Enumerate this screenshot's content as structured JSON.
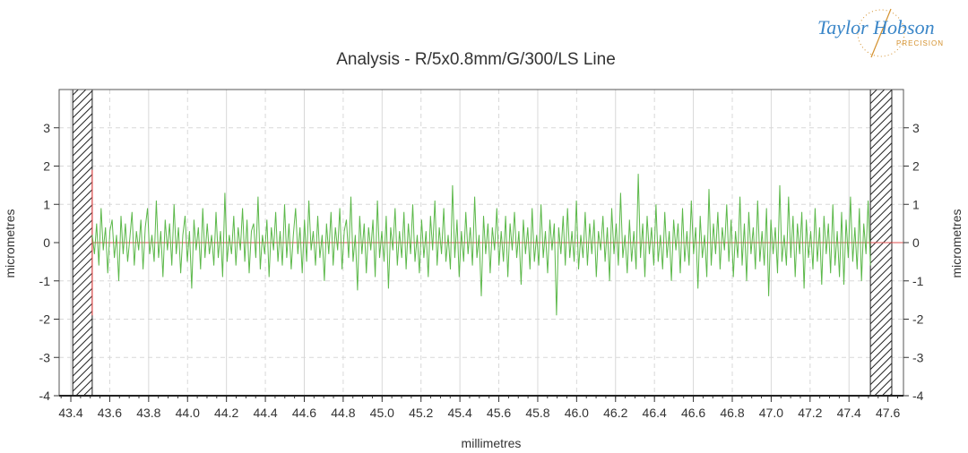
{
  "logo": {
    "name": "Taylor Hobson",
    "sub": "PRECISION"
  },
  "chart_data": {
    "type": "line",
    "title": "Analysis - R/5x0.8mm/G/300/LS Line",
    "xlabel": "millimetres",
    "ylabel": "micrometres",
    "ylabel_right": "micrometres",
    "xlim": [
      43.34,
      47.68
    ],
    "ylim": [
      -4,
      4
    ],
    "x_ticks": [
      "43.4",
      "43.6",
      "43.8",
      "44.0",
      "44.2",
      "44.4",
      "44.6",
      "44.8",
      "45.0",
      "45.2",
      "45.4",
      "45.6",
      "45.8",
      "46.0",
      "46.2",
      "46.4",
      "46.6",
      "46.8",
      "47.0",
      "47.2",
      "47.4",
      "47.6"
    ],
    "y_ticks": [
      "3",
      "2",
      "1",
      "0",
      "-1",
      "-2",
      "-3",
      "-4"
    ],
    "grid": true,
    "excluded_regions": [
      [
        43.41,
        43.51
      ],
      [
        47.51,
        47.62
      ]
    ],
    "evaluation_start_marker": {
      "x": 43.51,
      "y_range": [
        -1.9,
        1.9
      ]
    },
    "reference_line": {
      "y": 0,
      "color": "#e05050"
    },
    "profile_color": "#5cb84a",
    "series": [
      {
        "x_start": 43.51,
        "x_end": 47.51,
        "values": [
          0.2,
          -0.3,
          0.5,
          -0.6,
          0.9,
          -0.2,
          0.4,
          -0.8,
          0.3,
          0.6,
          -0.4,
          0.2,
          -1.0,
          0.7,
          -0.3,
          0.5,
          -0.5,
          0.1,
          0.8,
          -0.6,
          0.3,
          -0.2,
          0.6,
          -0.7,
          0.4,
          0.9,
          -0.3,
          0.2,
          -0.5,
          1.1,
          -0.4,
          0.3,
          -0.9,
          0.6,
          -0.2,
          0.5,
          -0.6,
          1.0,
          -0.3,
          0.4,
          -0.8,
          0.2,
          0.7,
          -0.5,
          0.3,
          -1.2,
          0.6,
          -0.2,
          0.4,
          -0.7,
          0.9,
          -0.4,
          0.5,
          -0.3,
          0.2,
          -0.6,
          0.8,
          -0.4,
          0.3,
          -0.9,
          1.3,
          -0.5,
          0.2,
          -0.3,
          0.7,
          -0.6,
          0.4,
          -0.2,
          0.9,
          -0.5,
          0.6,
          -0.8,
          0.3,
          0.5,
          -0.4,
          1.2,
          -0.7,
          0.2,
          -0.3,
          0.6,
          -0.9,
          0.4,
          -0.2,
          0.8,
          -0.5,
          0.3,
          -0.6,
          1.0,
          -0.4,
          0.5,
          -0.7,
          0.2,
          0.9,
          -0.3,
          0.4,
          -0.8,
          0.6,
          -0.5,
          1.1,
          -0.2,
          0.3,
          -0.6,
          0.7,
          -0.4,
          0.2,
          -1.0,
          0.5,
          -0.3,
          0.8,
          -0.6,
          0.4,
          -0.2,
          0.9,
          -0.7,
          0.3,
          0.6,
          -0.4,
          1.2,
          -0.5,
          0.2,
          -1.25,
          0.7,
          -0.3,
          0.5,
          -0.8,
          0.4,
          -0.2,
          0.6,
          -0.9,
          1.1,
          -0.4,
          0.3,
          -0.5,
          0.7,
          -1.2,
          0.4,
          -0.2,
          0.9,
          -0.6,
          0.3,
          -0.4,
          0.8,
          -0.7,
          0.5,
          -0.3,
          1.0,
          -0.5,
          0.2,
          -0.8,
          0.6,
          -0.4,
          0.3,
          -0.9,
          0.7,
          -0.2,
          1.1,
          -0.6,
          0.4,
          -0.3,
          0.9,
          -0.5,
          0.2,
          -0.7,
          1.5,
          -0.4,
          0.6,
          -0.9,
          0.3,
          -0.5,
          0.8,
          -0.3,
          0.4,
          -0.6,
          1.2,
          -0.4,
          0.2,
          -1.4,
          0.7,
          -0.3,
          0.5,
          -0.8,
          0.4,
          -0.2,
          0.9,
          -0.6,
          0.3,
          -0.5,
          0.7,
          -0.9,
          0.5,
          -0.2,
          0.8,
          -0.4,
          0.3,
          -1.1,
          0.6,
          -0.3,
          0.4,
          -0.7,
          0.9,
          -0.5,
          0.2,
          -0.6,
          1.0,
          -0.4,
          0.3,
          -0.8,
          0.6,
          -0.2,
          0.5,
          -1.9,
          0.4,
          -0.3,
          0.7,
          -0.6,
          0.9,
          -0.4,
          0.3,
          -0.5,
          1.1,
          -0.7,
          0.2,
          -0.4,
          0.8,
          -0.6,
          0.5,
          -0.3,
          0.6,
          -0.9,
          0.3,
          -0.2,
          0.7,
          -0.5,
          0.4,
          -1.0,
          0.9,
          -0.3,
          0.5,
          -0.6,
          1.3,
          -0.4,
          0.2,
          -0.8,
          0.6,
          -0.5,
          0.3,
          -0.7,
          1.8,
          -0.4,
          0.5,
          -0.9,
          0.7,
          -0.3,
          0.4,
          -0.6,
          1.0,
          -0.5,
          0.2,
          -0.7,
          0.8,
          -0.4,
          0.3,
          -1.0,
          0.6,
          -0.2,
          0.5,
          -0.8,
          0.9,
          -0.5,
          0.3,
          -0.6,
          1.1,
          -0.3,
          0.4,
          -1.2,
          0.7,
          -0.4,
          0.2,
          -0.9,
          1.4,
          -0.6,
          0.5,
          -0.3,
          0.8,
          -0.7,
          0.4,
          -0.2,
          1.0,
          -0.5,
          0.6,
          -0.9,
          0.3,
          -0.4,
          1.2,
          -0.6,
          0.5,
          -1.0,
          0.8,
          -0.3,
          0.4,
          -0.7,
          1.1,
          -0.5,
          0.3,
          -0.6,
          0.9,
          -1.4,
          0.6,
          -0.3,
          0.4,
          -0.8,
          1.5,
          -0.5,
          0.2,
          -0.6,
          1.2,
          -0.4,
          0.7,
          -0.9,
          0.5,
          -0.3,
          0.8,
          -1.2,
          0.6,
          -0.4,
          0.3,
          -0.7,
          0.9,
          -0.5,
          0.4,
          -1.1,
          0.7,
          -0.3,
          0.5,
          -0.8,
          1.0,
          -0.6,
          0.3,
          -0.9,
          0.8,
          -1.1,
          0.6,
          -0.4,
          1.2,
          -0.5,
          0.4,
          -0.7,
          0.9,
          -1.0,
          0.5,
          -0.3,
          1.1,
          -0.6
        ]
      }
    ]
  }
}
